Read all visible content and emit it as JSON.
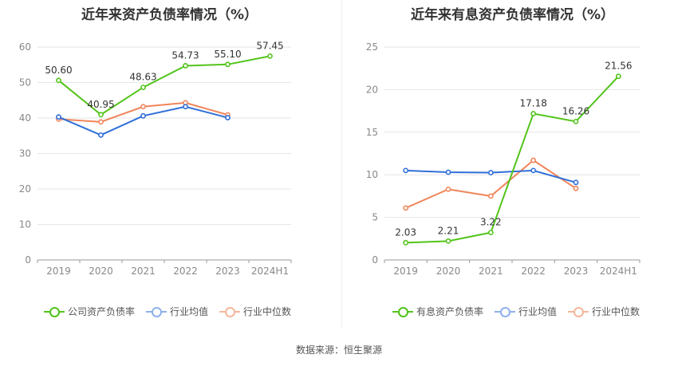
{
  "source_label": "数据来源：",
  "source_value": "恒生聚源",
  "chart_data": [
    {
      "type": "line",
      "title": "近年来资产负债率情况（%）",
      "categories": [
        "2019",
        "2020",
        "2021",
        "2022",
        "2023",
        "2024H1"
      ],
      "ylim": [
        0,
        60
      ],
      "yticks": [
        0,
        10,
        20,
        30,
        40,
        50,
        60
      ],
      "grid": true,
      "legend_position": "bottom",
      "series": [
        {
          "name": "公司资产负债率",
          "color": "#52c41a",
          "labeled": true,
          "values": [
            50.6,
            40.95,
            48.63,
            54.73,
            55.1,
            57.45
          ],
          "labels": [
            "50.60",
            "40.95",
            "48.63",
            "54.73",
            "55.10",
            "57.45"
          ]
        },
        {
          "name": "行业均值",
          "color": "#2f6fd8",
          "labeled": false,
          "values": [
            40.3,
            35.2,
            40.6,
            43.2,
            40.1,
            null
          ]
        },
        {
          "name": "行业中位数",
          "color": "#f0855a",
          "labeled": false,
          "values": [
            39.7,
            38.9,
            43.2,
            44.3,
            40.9,
            null
          ]
        }
      ]
    },
    {
      "type": "line",
      "title": "近年来有息资产负债率情况（%）",
      "categories": [
        "2019",
        "2020",
        "2021",
        "2022",
        "2023",
        "2024H1"
      ],
      "ylim": [
        0,
        25
      ],
      "yticks": [
        0,
        5,
        10,
        15,
        20,
        25
      ],
      "grid": true,
      "legend_position": "bottom",
      "series": [
        {
          "name": "有息资产负债率",
          "color": "#52c41a",
          "labeled": true,
          "values": [
            2.03,
            2.21,
            3.22,
            17.18,
            16.26,
            21.56
          ],
          "labels": [
            "2.03",
            "2.21",
            "3.22",
            "17.18",
            "16.26",
            "21.56"
          ]
        },
        {
          "name": "行业均值",
          "color": "#2f6fd8",
          "labeled": false,
          "values": [
            10.5,
            10.3,
            10.25,
            10.5,
            9.1,
            null
          ]
        },
        {
          "name": "行业中位数",
          "color": "#f0855a",
          "labeled": false,
          "values": [
            6.1,
            8.3,
            7.5,
            11.7,
            8.4,
            null
          ]
        }
      ]
    }
  ]
}
